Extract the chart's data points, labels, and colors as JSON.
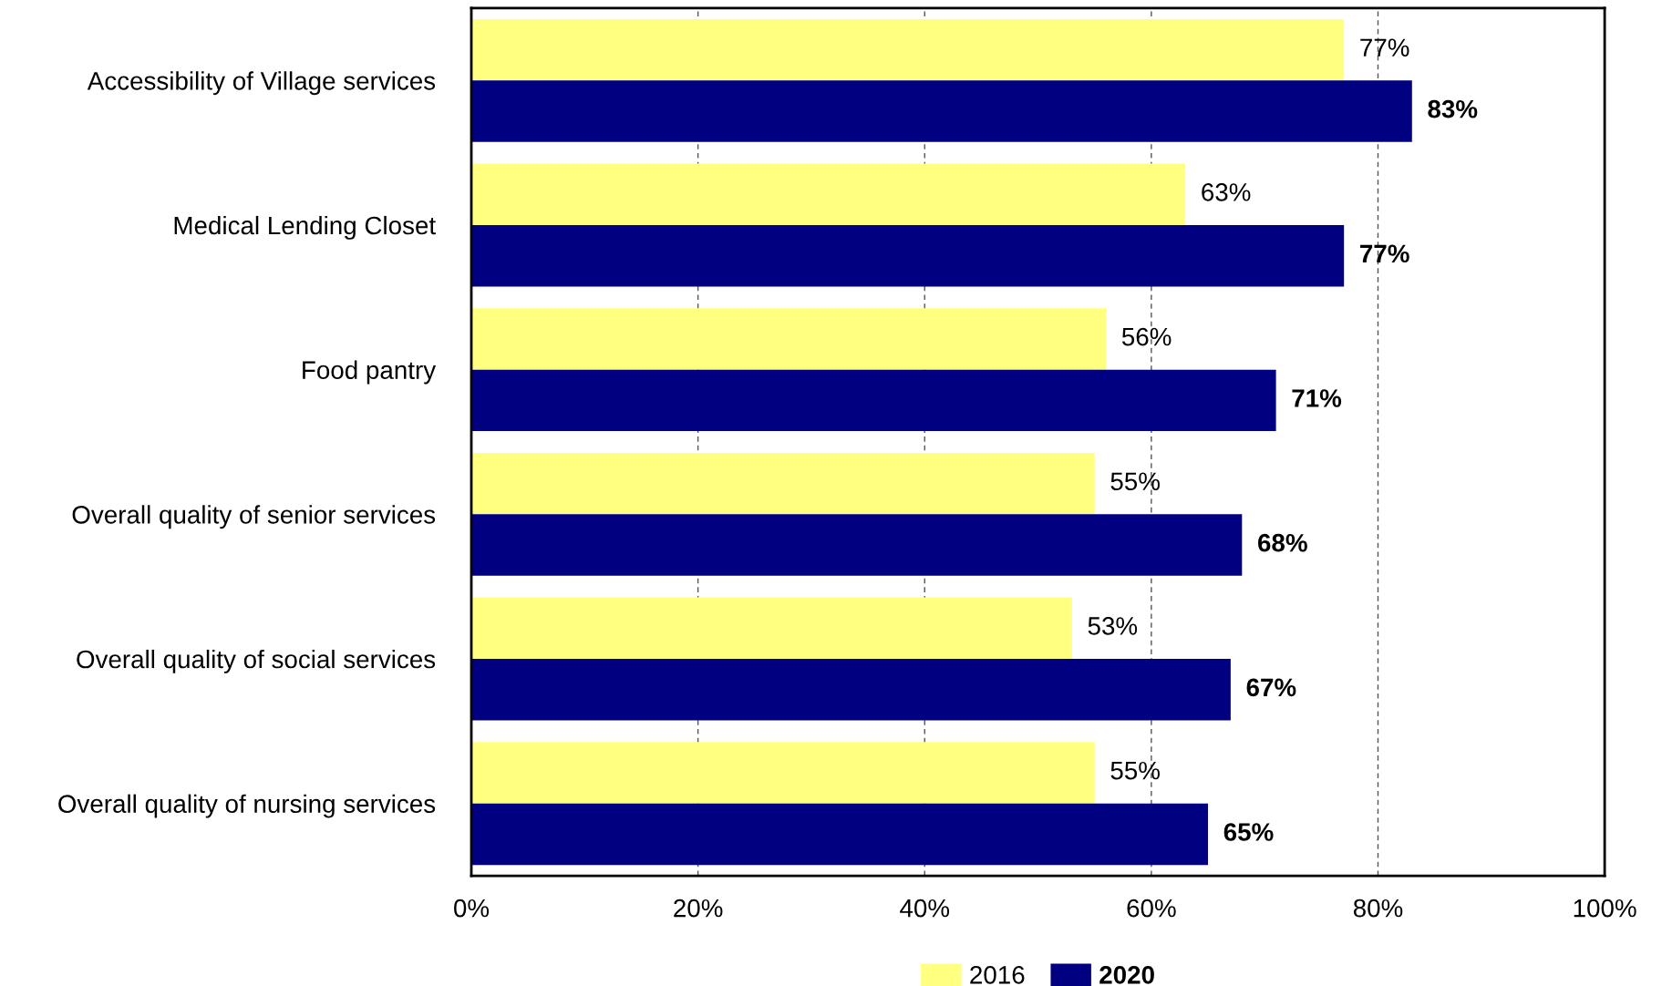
{
  "chart_data": {
    "type": "bar",
    "orientation": "horizontal",
    "categories": [
      "Accessibility of Village services",
      "Medical Lending Closet",
      "Food pantry",
      "Overall quality of senior services",
      "Overall quality of social services",
      "Overall quality of nursing services"
    ],
    "series": [
      {
        "name": "2016",
        "color": "#ffff80",
        "values": [
          77,
          63,
          56,
          55,
          53,
          55
        ],
        "value_labels": [
          "77%",
          "63%",
          "56%",
          "55%",
          "53%",
          "55%"
        ]
      },
      {
        "name": "2020",
        "color": "#000080",
        "values": [
          83,
          77,
          71,
          68,
          67,
          65
        ],
        "value_labels": [
          "83%",
          "77%",
          "71%",
          "68%",
          "67%",
          "65%"
        ]
      }
    ],
    "xlim": [
      0,
      100
    ],
    "xticks": [
      {
        "value": 0,
        "label": "0%"
      },
      {
        "value": 20,
        "label": "20%"
      },
      {
        "value": 40,
        "label": "40%"
      },
      {
        "value": 60,
        "label": "60%"
      },
      {
        "value": 80,
        "label": "80%"
      },
      {
        "value": 100,
        "label": "100%"
      }
    ],
    "grid": "x",
    "legend": "bottom"
  }
}
